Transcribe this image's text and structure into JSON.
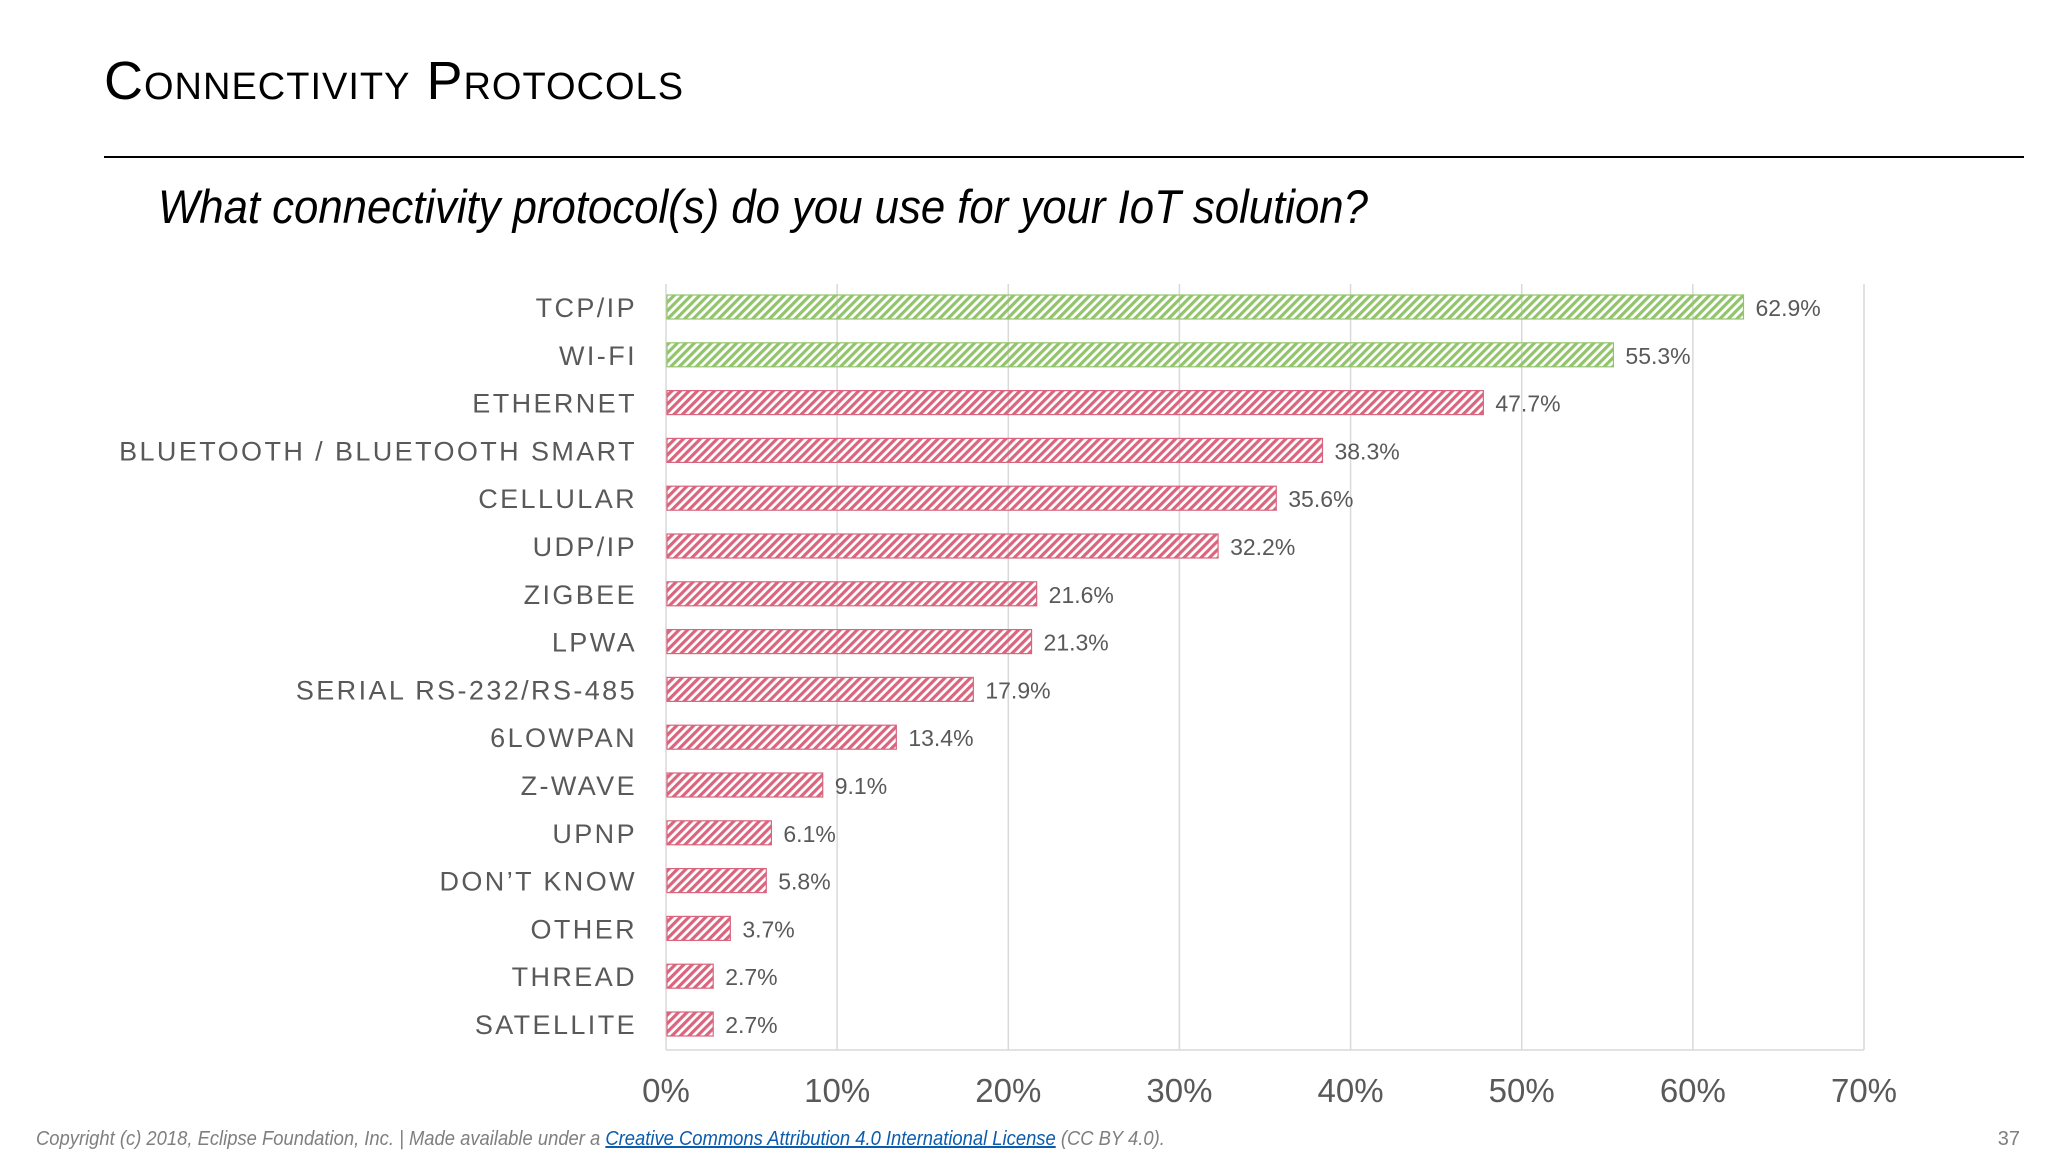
{
  "slide": {
    "title": "Connectivity Protocols",
    "question": "What connectivity protocol(s) do you use for your IoT solution?",
    "page_number": "37"
  },
  "footer": {
    "prefix": "Copyright (c) 2018, Eclipse Foundation, Inc. | Made available under a ",
    "license_link": "Creative Commons Attribution 4.0 International License",
    "suffix": " (CC BY 4.0)."
  },
  "colors": {
    "highlight": "#92c46b",
    "default": "#d9657e",
    "grid": "#d9d9d9",
    "label": "#595959"
  },
  "chart_data": {
    "type": "bar",
    "orientation": "horizontal",
    "categories": [
      "TCP/IP",
      "WI-FI",
      "ETHERNET",
      "BLUETOOTH / BLUETOOTH SMART",
      "CELLULAR",
      "UDP/IP",
      "ZIGBEE",
      "LPWA",
      "SERIAL RS-232/RS-485",
      "6LOWPAN",
      "Z-WAVE",
      "UPNP",
      "DON’T KNOW",
      "OTHER",
      "THREAD",
      "SATELLITE"
    ],
    "values": [
      62.9,
      55.3,
      47.7,
      38.3,
      35.6,
      32.2,
      21.6,
      21.3,
      17.9,
      13.4,
      9.1,
      6.1,
      5.8,
      3.7,
      2.7,
      2.7
    ],
    "value_labels": [
      "62.9%",
      "55.3%",
      "47.7%",
      "38.3%",
      "35.6%",
      "32.2%",
      "21.6%",
      "21.3%",
      "17.9%",
      "13.4%",
      "9.1%",
      "6.1%",
      "5.8%",
      "3.7%",
      "2.7%",
      "2.7%"
    ],
    "highlighted": [
      true,
      true,
      false,
      false,
      false,
      false,
      false,
      false,
      false,
      false,
      false,
      false,
      false,
      false,
      false,
      false
    ],
    "xlim": [
      0,
      70
    ],
    "xticks": [
      0,
      10,
      20,
      30,
      40,
      50,
      60,
      70
    ],
    "xtick_labels": [
      "0%",
      "10%",
      "20%",
      "30%",
      "40%",
      "50%",
      "60%",
      "70%"
    ],
    "grid": true,
    "legend": "none",
    "bar_fill": "diagonal-hatch"
  }
}
